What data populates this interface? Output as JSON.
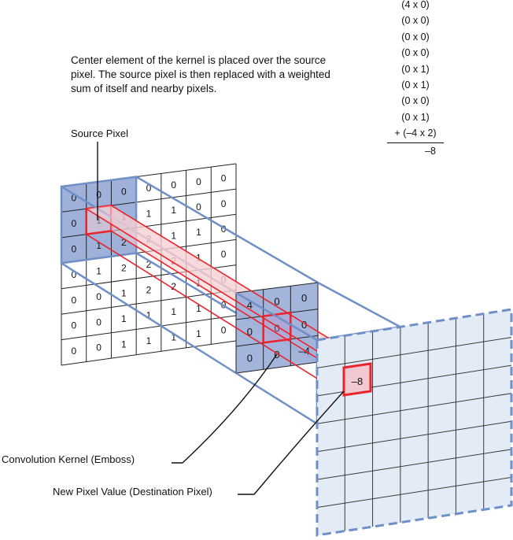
{
  "description": "Center element of the kernel is placed over the source pixel. The source pixel is then replaced with a weighted sum of itself and nearby pixels.",
  "labels": {
    "source_pixel": "Source Pixel",
    "kernel": "Convolution Kernel (Emboss)",
    "destination": "New Pixel Value (Destination Pixel)"
  },
  "calculation": {
    "terms": [
      "(4 x 0)",
      "(0 x 0)",
      "(0 x 0)",
      "(0 x 0)",
      "(0 x 1)",
      "(0 x 1)",
      "(0 x 0)",
      "(0 x 1)",
      "+ (–4 x 2)"
    ],
    "result": "–8"
  },
  "source_grid": [
    [
      "0",
      "0",
      "0",
      "0",
      "0",
      "0",
      "0"
    ],
    [
      "0",
      "1",
      "1",
      "1",
      "1",
      "0",
      "0"
    ],
    [
      "0",
      "1",
      "2",
      "2",
      "1",
      "1",
      "0"
    ],
    [
      "0",
      "1",
      "2",
      "2",
      "2",
      "1",
      "0"
    ],
    [
      "0",
      "0",
      "1",
      "2",
      "2",
      "1",
      "0"
    ],
    [
      "0",
      "0",
      "1",
      "1",
      "1",
      "1",
      "0"
    ],
    [
      "0",
      "0",
      "1",
      "1",
      "1",
      "1",
      "0"
    ]
  ],
  "kernel_grid": [
    [
      "4",
      "0",
      "0"
    ],
    [
      "0",
      "0",
      "0"
    ],
    [
      "0",
      "0",
      "–4"
    ]
  ],
  "destination_value": "–8",
  "colors": {
    "blue_line": "#6f8fc7",
    "blue_fill": "#9fb1d9",
    "red": "#e8242c",
    "red_fill": "#f7cfd3",
    "dest_fill": "#e3ebf6",
    "grid_line": "#222222"
  }
}
